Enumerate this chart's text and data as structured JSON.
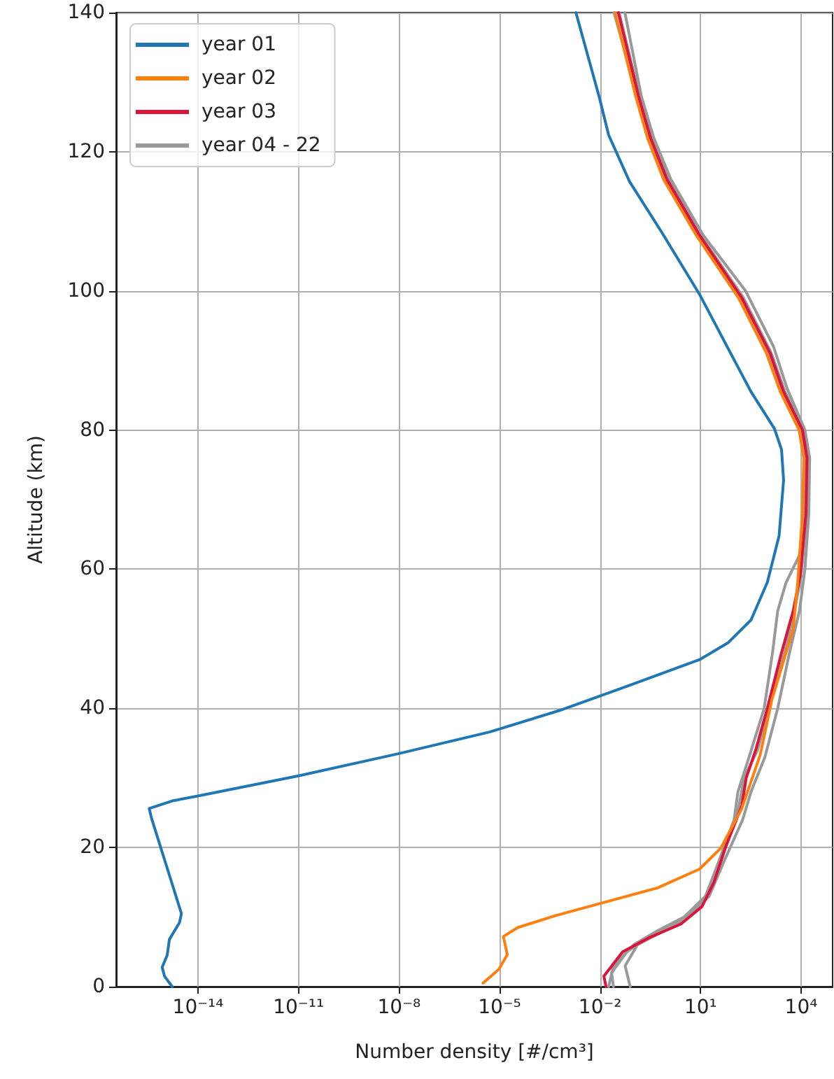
{
  "chart_data": {
    "type": "line",
    "xlabel": "Number density [#/cm³]",
    "ylabel": "Altitude (km)",
    "log": "x",
    "xlim": [
      3.6e-17,
      87000.0
    ],
    "xticks": [
      {
        "value": 1e-14,
        "label": "10⁻¹⁴"
      },
      {
        "value": 1e-11,
        "label": "10⁻¹¹"
      },
      {
        "value": 1e-08,
        "label": "10⁻⁸"
      },
      {
        "value": 1e-05,
        "label": "10⁻⁵"
      },
      {
        "value": 0.01,
        "label": "10⁻²"
      },
      {
        "value": 10,
        "label": "10¹"
      },
      {
        "value": 10000,
        "label": "10⁴"
      }
    ],
    "ylim": [
      0,
      140
    ],
    "yticks": [
      0,
      20,
      40,
      60,
      80,
      100,
      120,
      140
    ],
    "grid": true,
    "legend": "top left",
    "marker": "none",
    "series": [
      {
        "name": "year 01",
        "color": "#1f77b4",
        "x": [
          1.7e-15,
          1e-15,
          8.5e-16,
          1.2e-15,
          1.4e-15,
          2.8e-15,
          3.2e-15,
          4.1e-16,
          3.5e-16,
          1.7e-15,
          1e-14,
          1e-11,
          1e-08,
          5e-06,
          0.00062,
          0.076,
          9.3,
          65,
          320,
          980,
          2200,
          3000,
          2600,
          1600,
          320,
          105,
          9.3,
          0.72,
          0.076,
          0.018,
          0.0095,
          0.0019
        ],
        "values": [
          0,
          1.5,
          2.8,
          4.5,
          6.8,
          9.2,
          10.5,
          24.2,
          25.6,
          26.7,
          27.4,
          30.3,
          33.5,
          36.6,
          39.7,
          43.3,
          47.0,
          49.4,
          52.7,
          58.1,
          64.8,
          72.8,
          77.2,
          80.2,
          85.5,
          89.9,
          99.5,
          108.3,
          115.7,
          122.4,
          127.8,
          140
        ]
      },
      {
        "name": "year 02",
        "color": "#ff7f0e",
        "x": [
          3.2e-06,
          9.5e-06,
          1.7e-05,
          1.3e-05,
          3.5e-05,
          0.00046,
          0.011,
          0.52,
          9.3,
          40,
          170,
          600,
          1350,
          5800,
          7900,
          11000,
          12000,
          8700,
          2400,
          930,
          135,
          7.4,
          0.79,
          0.26,
          0.115,
          0.028
        ],
        "values": [
          0.5,
          2.5,
          4.6,
          7.2,
          8.5,
          10.2,
          12.0,
          14.2,
          16.9,
          19.9,
          25.6,
          33.3,
          41.3,
          51.4,
          58.1,
          68,
          76,
          80,
          85.5,
          91,
          99,
          108,
          116,
          122,
          128,
          140
        ]
      },
      {
        "name": "year 03",
        "color": "#dc143c",
        "x": [
          0.015,
          0.013,
          0.047,
          0.28,
          2.6,
          11,
          25,
          55,
          170,
          230,
          440,
          980,
          2600,
          5800,
          9300,
          14000,
          15000,
          11000,
          3000,
          1200,
          170,
          9.3,
          1.0,
          0.32,
          0.14,
          0.035
        ],
        "values": [
          0,
          1.5,
          5,
          7,
          9,
          11.5,
          15,
          20,
          26,
          30,
          34,
          40,
          48,
          54,
          59,
          68,
          76,
          80,
          85.5,
          91,
          99,
          108,
          116,
          122,
          128,
          140
        ]
      },
      {
        "name": "year 04 - 22",
        "color": "#999999",
        "x": [
          0.025,
          0.022,
          0.063,
          0.25,
          2.0,
          8.9,
          25,
          56,
          140,
          200,
          500,
          1100,
          3200,
          6300,
          10000,
          15000,
          16000,
          12000,
          3300,
          1300,
          190,
          10,
          1.1,
          0.35,
          0.15,
          0.037
        ],
        "values": [
          0,
          2,
          5,
          7,
          9,
          11.5,
          15,
          20,
          26,
          30,
          34,
          40,
          48,
          54,
          59,
          68,
          76,
          80,
          85.5,
          91,
          99,
          108,
          116,
          122,
          128,
          140
        ]
      },
      {
        "color": "#999999",
        "x": [
          0.018,
          0.025,
          0.1,
          0.5,
          3.2,
          14,
          35,
          100,
          130,
          280,
          790,
          1400,
          2000,
          3500,
          8900,
          13000,
          14000,
          10000,
          2500,
          890,
          110,
          7.9,
          0.85,
          0.28,
          0.13,
          0.026
        ],
        "values": [
          0,
          3,
          6,
          8,
          10,
          13,
          18,
          24,
          28,
          33,
          40,
          48,
          54,
          58,
          62,
          68,
          76,
          80,
          86,
          92,
          100,
          108,
          116,
          122,
          128,
          140
        ]
      },
      {
        "color": "#999999",
        "x": [
          0.079,
          0.056,
          0.13,
          0.79,
          4.0,
          18,
          50,
          180,
          320,
          830,
          2000,
          4500,
          8900,
          13000,
          17000,
          18000,
          13000,
          3800,
          1500,
          220,
          12,
          1.3,
          0.4,
          0.17,
          0.055
        ],
        "values": [
          0,
          3,
          6,
          8,
          10,
          13,
          18,
          24,
          28,
          33,
          40,
          48,
          54,
          60,
          68,
          76,
          80,
          86,
          92,
          100,
          108,
          116,
          122,
          128,
          140
        ]
      }
    ]
  }
}
